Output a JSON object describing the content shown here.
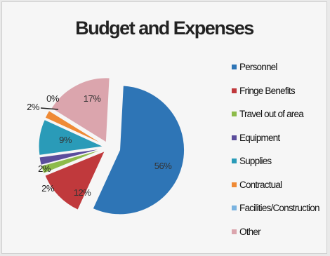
{
  "chart_data": {
    "type": "pie",
    "title": "Budget and Expenses",
    "legend_position": "right",
    "slices": [
      {
        "name": "Personnel",
        "value": 56,
        "label": "56%",
        "color": "#2e75b6"
      },
      {
        "name": "Fringe Benefits",
        "value": 12,
        "label": "12%",
        "color": "#c0393c"
      },
      {
        "name": "Travel out of area",
        "value": 2,
        "label": "2%",
        "color": "#8dbb4a"
      },
      {
        "name": "Equipment",
        "value": 2,
        "label": "2%",
        "color": "#5b4d9c"
      },
      {
        "name": "Supplies",
        "value": 9,
        "label": "9%",
        "color": "#2a9bb8"
      },
      {
        "name": "Contractual",
        "value": 2,
        "label": "2%",
        "color": "#ef8a35"
      },
      {
        "name": "Facilities/Construction",
        "value": 0,
        "label": "0%",
        "color": "#7ab3e0"
      },
      {
        "name": "Other",
        "value": 17,
        "label": "17%",
        "color": "#dba5ad"
      }
    ]
  }
}
